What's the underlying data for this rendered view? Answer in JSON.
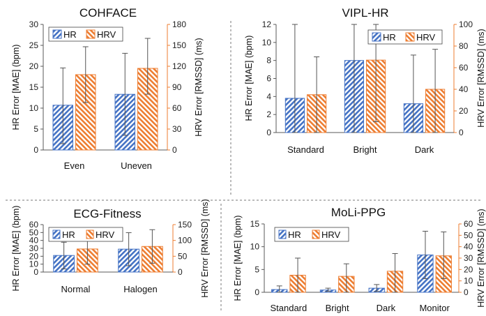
{
  "colors": {
    "hr": "#4472C4",
    "hrv": "#ED7D31",
    "axis": "#595959",
    "error_bar": "#555555",
    "divider": "#777777"
  },
  "chart_data": [
    {
      "type": "bar",
      "title": "COHFACE",
      "categories": [
        "Even",
        "Uneven"
      ],
      "ylabel": "HR Error [MAE] (bpm)",
      "y2label": "HRV Error [RMSSD] (ms)",
      "ylim": [
        0,
        30
      ],
      "y2lim": [
        0,
        180
      ],
      "yticks": [
        "0",
        "5",
        "10",
        "15",
        "20",
        "25",
        "30"
      ],
      "y2ticks": [
        "0",
        "30",
        "60",
        "90",
        "120",
        "150",
        "180"
      ],
      "legend": "top-left",
      "series": [
        {
          "name": "HR",
          "axis": "left",
          "values": [
            10.7,
            13.3
          ],
          "err_low": [
            1.5,
            3.5
          ],
          "err_high": [
            19.6,
            23.1
          ]
        },
        {
          "name": "HRV",
          "axis": "right",
          "values": [
            108,
            117
          ],
          "err_low": [
            68,
            80
          ],
          "err_high": [
            148,
            160
          ]
        }
      ]
    },
    {
      "type": "bar",
      "title": "VIPL-HR",
      "categories": [
        "Standard",
        "Bright",
        "Dark"
      ],
      "ylabel": "HR Error [MAE] (bpm)",
      "y2label": "HRV Error [RMSSD] (ms)",
      "ylim": [
        0,
        12
      ],
      "y2lim": [
        0,
        100
      ],
      "yticks": [
        "0",
        "2",
        "4",
        "6",
        "8",
        "10",
        "12"
      ],
      "y2ticks": [
        "0",
        "20",
        "40",
        "60",
        "80",
        "100"
      ],
      "legend": "top-right",
      "series": [
        {
          "name": "HR",
          "axis": "left",
          "values": [
            3.8,
            8.0,
            3.2
          ],
          "err_low": [
            0,
            0,
            0
          ],
          "err_high": [
            12,
            12,
            8.6
          ]
        },
        {
          "name": "HRV",
          "axis": "right",
          "values": [
            35,
            67,
            40
          ],
          "err_low": [
            0,
            10,
            0
          ],
          "err_high": [
            70,
            100,
            77
          ]
        }
      ]
    },
    {
      "type": "bar",
      "title": "ECG-Fitness",
      "categories": [
        "Normal",
        "Halogen"
      ],
      "ylabel": "HR Error [MAE] (bpm)",
      "y2label": "HRV Error [RMSSD] (ms)",
      "ylim": [
        0,
        60
      ],
      "y2lim": [
        0,
        150
      ],
      "yticks": [
        "0",
        "10",
        "20",
        "30",
        "40",
        "50",
        "60"
      ],
      "y2ticks": [
        "0",
        "50",
        "100",
        "150"
      ],
      "legend": "top-left",
      "series": [
        {
          "name": "HR",
          "axis": "left",
          "values": [
            21,
            29
          ],
          "err_low": [
            4,
            8
          ],
          "err_high": [
            37.7,
            49.8
          ]
        },
        {
          "name": "HRV",
          "axis": "right",
          "values": [
            73,
            81
          ],
          "err_low": [
            25,
            28
          ],
          "err_high": [
            120,
            134
          ]
        }
      ]
    },
    {
      "type": "bar",
      "title": "MoLi-PPG",
      "categories": [
        "Standard",
        "Bright",
        "Dark",
        "Monitor"
      ],
      "ylabel": "HR Error [MAE] (bpm)",
      "y2label": "HRV Error [RMSSD] (ms)",
      "ylim": [
        0,
        15
      ],
      "y2lim": [
        0,
        60
      ],
      "yticks": [
        "0",
        "5",
        "10",
        "15"
      ],
      "y2ticks": [
        "0",
        "10",
        "20",
        "30",
        "40",
        "50",
        "60"
      ],
      "legend": "top-left",
      "series": [
        {
          "name": "HR",
          "axis": "left",
          "values": [
            0.6,
            0.5,
            0.9,
            8.2
          ],
          "err_low": [
            0,
            0.2,
            0.2,
            3
          ],
          "err_high": [
            1.4,
            0.9,
            1.7,
            13.4
          ]
        },
        {
          "name": "HRV",
          "axis": "right",
          "values": [
            15,
            14,
            18.5,
            32
          ],
          "err_low": [
            0,
            0,
            0,
            12
          ],
          "err_high": [
            30,
            25,
            34,
            53
          ]
        }
      ]
    }
  ]
}
